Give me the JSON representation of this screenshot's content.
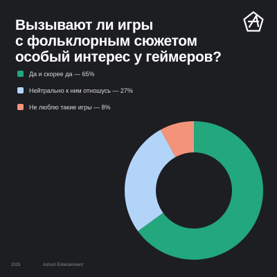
{
  "title_lines": [
    "Вызывают ли игры",
    "с фольклорным сюжетом",
    "особый интерес у геймеров?"
  ],
  "logo_icon": "astrum-star-logo-icon",
  "colors": {
    "background": "#1d1e22",
    "series": [
      "#23a77c",
      "#b3d4f9",
      "#f3937a"
    ]
  },
  "chart_data": {
    "type": "pie",
    "variant": "donut",
    "title": "Вызывают ли игры с фольклорным сюжетом особый интерес у геймеров?",
    "legend_position": "top-left",
    "categories": [
      "Да и скорее да — 65%",
      "Нейтрально к ним отношусь — 27%",
      "Не люблю такие игры — 8%"
    ],
    "values": [
      65,
      27,
      8
    ]
  },
  "footer": {
    "year": "2025",
    "company": "Astrum Entertainment"
  }
}
